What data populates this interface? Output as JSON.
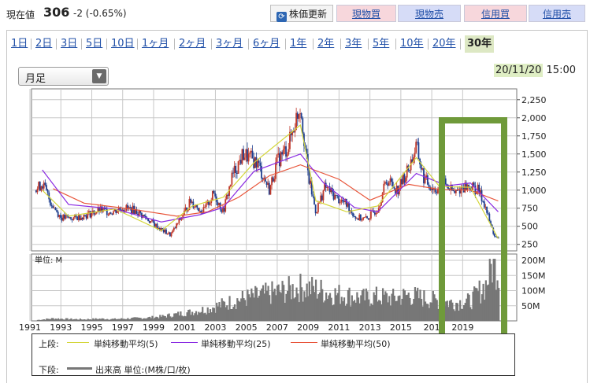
{
  "header": {
    "price_label": "現在値",
    "price_value": "306",
    "price_change": "-2 (-0.65%)",
    "refresh_icon": "refresh-icon",
    "refresh_label": "株価更新",
    "buttons": [
      "現物買",
      "現物売",
      "信用買",
      "信用売"
    ],
    "button_colors": {
      "buy": "#f7d7dc",
      "sell": "#d6dcf7"
    }
  },
  "tabs": [
    "1日",
    "2日",
    "3日",
    "5日",
    "10日",
    "1ヶ月",
    "2ヶ月",
    "3ヶ月",
    "6ヶ月",
    "1年",
    "2年",
    "3年",
    "5年",
    "10年",
    "20年",
    "30年"
  ],
  "active_tab": "30年",
  "period_select": {
    "value": "月足",
    "icon": "chevron-down-icon"
  },
  "datetime": {
    "date": "20/11/20",
    "time": "15:00"
  },
  "volume_unit_label": "単位: M",
  "legend": {
    "upper_label": "上段:",
    "lower_label": "下段:",
    "ma5": "単純移動平均(5)",
    "ma25": "単純移動平均(25)",
    "ma50": "単純移動平均(50)",
    "volume": "出来高 単位:(M株/口/枚)",
    "colors": {
      "ma5": "#d4d63a",
      "ma25": "#8a2be2",
      "ma50": "#e8553a",
      "volume": "#777777",
      "highlight": "#6f9a3a",
      "up": "#c0392b",
      "down": "#1f3f8f"
    }
  },
  "chart_data": [
    {
      "type": "candlestick",
      "title": "",
      "x_ticks": [
        "1991",
        "1993",
        "1995",
        "1997",
        "1999",
        "2001",
        "2003",
        "2005",
        "2007",
        "2009",
        "2011",
        "2013",
        "2015",
        "201",
        "2019"
      ],
      "y_ticks": [
        "2,250",
        "2,000",
        "1,750",
        "1,500",
        "1,250",
        "1,000",
        "750",
        "500",
        "250"
      ],
      "ylim": [
        160,
        2400
      ],
      "xlim": [
        1990.6,
        2022.0
      ],
      "price_points": [
        [
          1990.9,
          1000
        ],
        [
          1991.3,
          1100
        ],
        [
          1991.8,
          850
        ],
        [
          1992.5,
          620
        ],
        [
          1993.3,
          610
        ],
        [
          1994.2,
          660
        ],
        [
          1995.0,
          720
        ],
        [
          1995.8,
          700
        ],
        [
          1996.5,
          760
        ],
        [
          1997.3,
          720
        ],
        [
          1998.1,
          600
        ],
        [
          1999.0,
          450
        ],
        [
          1999.6,
          380
        ],
        [
          2000.3,
          620
        ],
        [
          2000.9,
          850
        ],
        [
          2001.7,
          700
        ],
        [
          2002.4,
          950
        ],
        [
          2003.0,
          700
        ],
        [
          2003.6,
          1200
        ],
        [
          2004.3,
          1500
        ],
        [
          2005.2,
          1380
        ],
        [
          2006.0,
          1000
        ],
        [
          2006.5,
          1400
        ],
        [
          2007.2,
          1600
        ],
        [
          2007.6,
          1900
        ],
        [
          2008.0,
          2200
        ],
        [
          2008.5,
          1200
        ],
        [
          2009.0,
          700
        ],
        [
          2009.6,
          1050
        ],
        [
          2010.3,
          900
        ],
        [
          2011.0,
          800
        ],
        [
          2011.6,
          620
        ],
        [
          2012.3,
          600
        ],
        [
          2013.0,
          750
        ],
        [
          2013.6,
          1150
        ],
        [
          2014.3,
          1000
        ],
        [
          2015.0,
          1300
        ],
        [
          2015.5,
          1600
        ],
        [
          2016.0,
          1150
        ],
        [
          2016.7,
          1000
        ],
        [
          2017.3,
          1100
        ],
        [
          2018.0,
          950
        ],
        [
          2018.5,
          1050
        ],
        [
          2019.0,
          1050
        ],
        [
          2019.5,
          1000
        ],
        [
          2019.9,
          820
        ],
        [
          2020.3,
          520
        ],
        [
          2020.6,
          350
        ],
        [
          2020.88,
          306
        ]
      ],
      "ma5": [
        [
          1991.3,
          1000
        ],
        [
          1993,
          640
        ],
        [
          1996,
          740
        ],
        [
          1999,
          440
        ],
        [
          2001,
          780
        ],
        [
          2003,
          900
        ],
        [
          2005,
          1380
        ],
        [
          2008,
          1900
        ],
        [
          2009,
          850
        ],
        [
          2011,
          700
        ],
        [
          2013,
          780
        ],
        [
          2015.5,
          1450
        ],
        [
          2017,
          1050
        ],
        [
          2019,
          1040
        ],
        [
          2020.8,
          330
        ]
      ],
      "ma25": [
        [
          1991.3,
          1280
        ],
        [
          1993,
          800
        ],
        [
          1996,
          740
        ],
        [
          1999,
          560
        ],
        [
          2001.5,
          660
        ],
        [
          2003,
          760
        ],
        [
          2005,
          1260
        ],
        [
          2008,
          1500
        ],
        [
          2009.5,
          1100
        ],
        [
          2011.5,
          760
        ],
        [
          2013,
          700
        ],
        [
          2015.5,
          1230
        ],
        [
          2017.5,
          1060
        ],
        [
          2019,
          1100
        ],
        [
          2020.8,
          700
        ]
      ],
      "ma50": [
        [
          1992,
          1020
        ],
        [
          1994,
          820
        ],
        [
          1997,
          740
        ],
        [
          2000,
          640
        ],
        [
          2002,
          700
        ],
        [
          2004,
          900
        ],
        [
          2006,
          1200
        ],
        [
          2008,
          1350
        ],
        [
          2010.5,
          1150
        ],
        [
          2012.5,
          860
        ],
        [
          2015,
          1080
        ],
        [
          2017,
          1010
        ],
        [
          2019,
          1000
        ],
        [
          2020.8,
          850
        ]
      ]
    },
    {
      "type": "bar",
      "title": "",
      "y_ticks": [
        "200M",
        "150M",
        "100M",
        "50M"
      ],
      "ylim": [
        0,
        200
      ],
      "volume_points": [
        [
          1991,
          3
        ],
        [
          1992,
          8
        ],
        [
          1993,
          6
        ],
        [
          1994,
          5
        ],
        [
          1995,
          7
        ],
        [
          1996,
          6
        ],
        [
          1997,
          8
        ],
        [
          1998,
          10
        ],
        [
          1999,
          14
        ],
        [
          2000,
          22
        ],
        [
          2001,
          30
        ],
        [
          2002,
          40
        ],
        [
          2003,
          55
        ],
        [
          2004,
          70
        ],
        [
          2005,
          80
        ],
        [
          2006,
          90
        ],
        [
          2007,
          100
        ],
        [
          2008,
          110
        ],
        [
          2009,
          105
        ],
        [
          2010,
          90
        ],
        [
          2011,
          85
        ],
        [
          2012,
          75
        ],
        [
          2013,
          80
        ],
        [
          2014,
          75
        ],
        [
          2015,
          85
        ],
        [
          2016,
          75
        ],
        [
          2017,
          65
        ],
        [
          2018,
          60
        ],
        [
          2019,
          65
        ],
        [
          2020,
          120
        ],
        [
          2020.5,
          200
        ],
        [
          2020.88,
          160
        ]
      ]
    }
  ]
}
